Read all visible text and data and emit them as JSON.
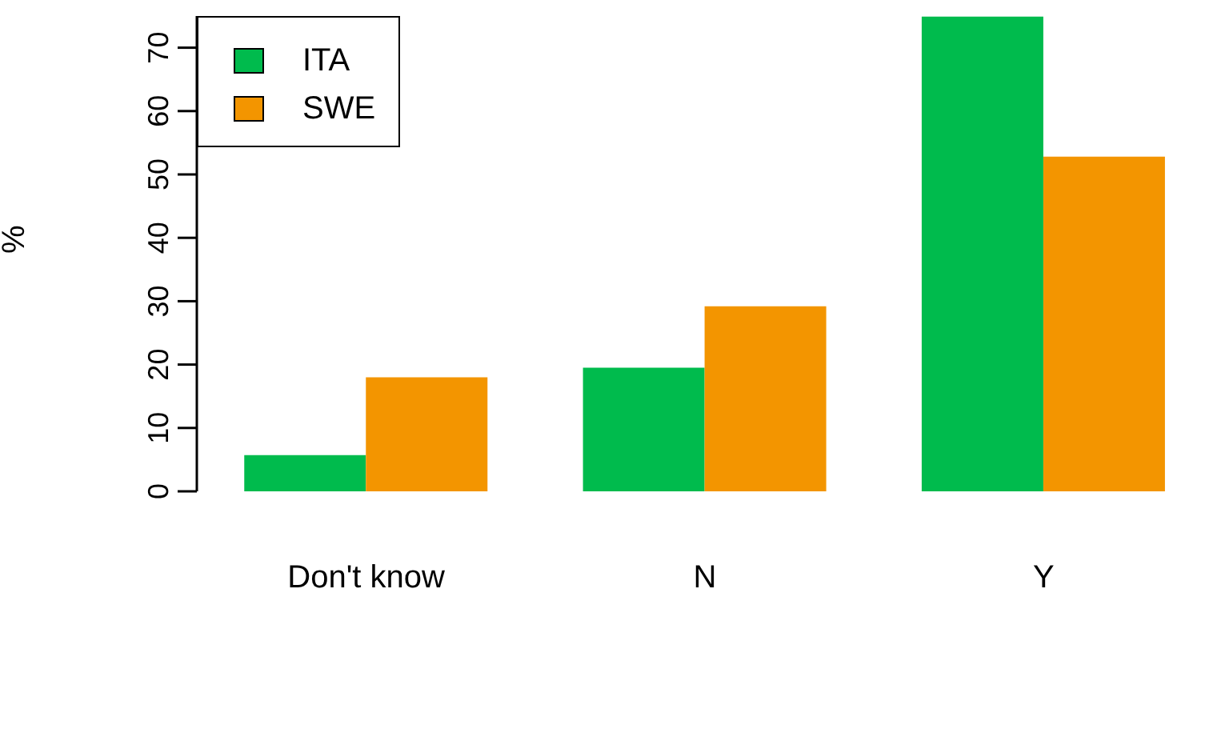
{
  "chart_data": {
    "type": "bar",
    "ylabel": "%",
    "categories": [
      "Don't know",
      "N",
      "Y"
    ],
    "series": [
      {
        "name": "ITA",
        "color": "#00bb4d",
        "values": [
          5.7,
          19.5,
          74.9
        ]
      },
      {
        "name": "SWE",
        "color": "#f39500",
        "values": [
          18.0,
          29.2,
          52.8
        ]
      }
    ],
    "ylim": [
      0,
      75
    ],
    "yticks": [
      0,
      10,
      20,
      30,
      40,
      50,
      60,
      70
    ],
    "legend": "top left",
    "grid": false
  }
}
